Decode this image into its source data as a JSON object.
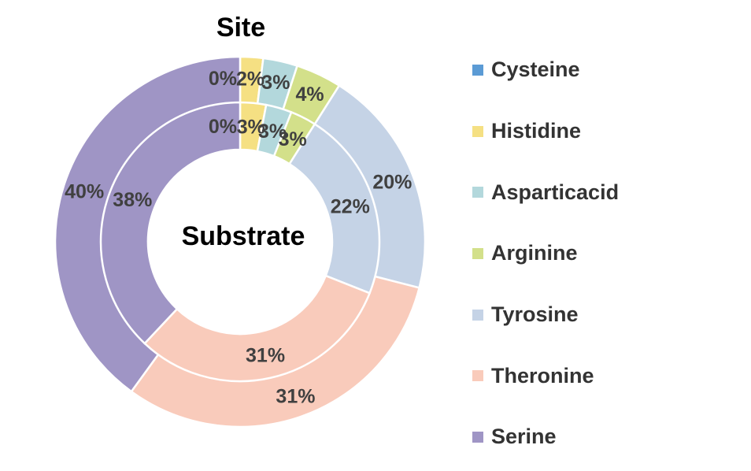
{
  "chart_data": {
    "type": "doughnut",
    "outer_ring_title": "Site",
    "inner_ring_title": "Substrate",
    "categories": [
      "Cysteine",
      "Histidine",
      "Asparticacid",
      "Arginine",
      "Tyrosine",
      "Theronine",
      "Serine"
    ],
    "colors": [
      "#5b9bd5",
      "#f5e083",
      "#b3d8dc",
      "#d3e08a",
      "#c5d3e6",
      "#f9cbbb",
      "#9f95c5"
    ],
    "series": [
      {
        "name": "Site",
        "ring": "outer",
        "values": [
          0,
          2,
          3,
          4,
          20,
          31,
          40
        ],
        "labels": [
          "0%",
          "2%",
          "3%",
          "4%",
          "20%",
          "31%",
          "40%"
        ]
      },
      {
        "name": "Substrate",
        "ring": "inner",
        "values": [
          0,
          3,
          3,
          3,
          22,
          31,
          38
        ],
        "labels": [
          "0%",
          "3%",
          "3%",
          "3%",
          "22%",
          "31%",
          "38%"
        ]
      }
    ],
    "legend_position": "right"
  }
}
